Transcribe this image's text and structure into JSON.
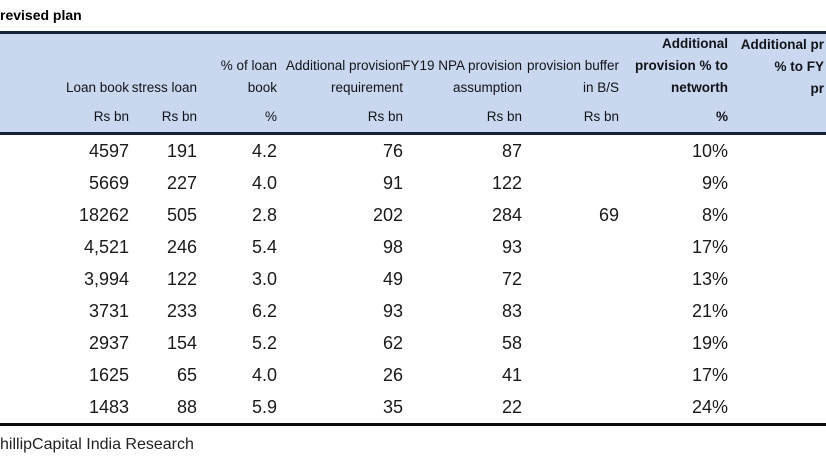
{
  "title": "revised plan",
  "footer": "hillipCapital India Research",
  "colors": {
    "header_bg": "#c9d8ee",
    "header_border": "#152238",
    "table_bottom_border": "#0b0b0b"
  },
  "table": {
    "columns": [
      {
        "id": "name",
        "label_lines": [],
        "unit": ""
      },
      {
        "id": "loan-book",
        "label_lines": [
          "Loan book"
        ],
        "unit": "Rs bn"
      },
      {
        "id": "stress-loan",
        "label_lines": [
          "stress loan"
        ],
        "unit": "Rs bn"
      },
      {
        "id": "pct-of-loan-book",
        "label_lines": [
          "% of loan",
          "book"
        ],
        "unit": "%"
      },
      {
        "id": "addl-prov-req",
        "label_lines": [
          "Additional provision",
          "requirement"
        ],
        "unit": "Rs bn"
      },
      {
        "id": "fy19-npa-prov",
        "label_lines": [
          "FY19 NPA provision",
          "assumption"
        ],
        "unit": "Rs bn"
      },
      {
        "id": "prov-buffer",
        "label_lines": [
          "provision buffer",
          "in B/S"
        ],
        "unit": "Rs bn"
      },
      {
        "id": "addl-prov-networth",
        "label_lines": [
          "Additional",
          "provision % to",
          "networth"
        ],
        "unit": "%"
      },
      {
        "id": "addl-prov-fy",
        "label_lines": [
          "Additional pr",
          "% to FY",
          "pr"
        ],
        "unit": ""
      }
    ],
    "rows": [
      [
        "",
        "4597",
        "191",
        "4.2",
        "76",
        "87",
        "",
        "10%",
        ""
      ],
      [
        "",
        "5669",
        "227",
        "4.0",
        "91",
        "122",
        "",
        "9%",
        ""
      ],
      [
        "",
        "18262",
        "505",
        "2.8",
        "202",
        "284",
        "69",
        "8%",
        ""
      ],
      [
        "",
        "4,521",
        "246",
        "5.4",
        "98",
        "93",
        "",
        "17%",
        ""
      ],
      [
        "",
        "3,994",
        "122",
        "3.0",
        "49",
        "72",
        "",
        "13%",
        ""
      ],
      [
        "",
        "3731",
        "233",
        "6.2",
        "93",
        "83",
        "",
        "21%",
        ""
      ],
      [
        "",
        "2937",
        "154",
        "5.2",
        "62",
        "58",
        "",
        "19%",
        ""
      ],
      [
        "",
        "1625",
        "65",
        "4.0",
        "26",
        "41",
        "",
        "17%",
        ""
      ],
      [
        "",
        "1483",
        "88",
        "5.9",
        "35",
        "22",
        "",
        "24%",
        ""
      ]
    ]
  }
}
